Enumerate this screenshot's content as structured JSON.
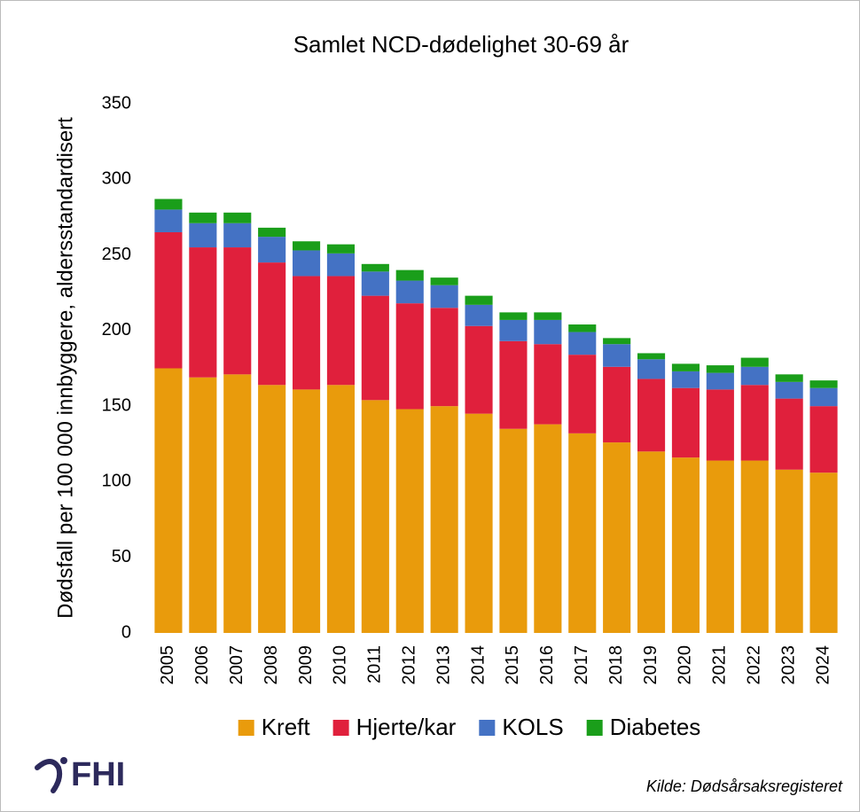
{
  "chart_data": {
    "type": "stacked_bar",
    "title": "Samlet NCD-dødelighet 30-69 år",
    "y_label": "Dødsfall per 100 000 innbyggere, aldersstandardisert",
    "categories": [
      "2005",
      "2006",
      "2007",
      "2008",
      "2009",
      "2010",
      "2011",
      "2012",
      "2013",
      "2014",
      "2015",
      "2016",
      "2017",
      "2018",
      "2019",
      "2020",
      "2021",
      "2022",
      "2023",
      "2024"
    ],
    "series": [
      {
        "name": "Kreft",
        "color": "#E99B0C",
        "values": [
          175,
          169,
          171,
          164,
          161,
          164,
          154,
          148,
          150,
          145,
          135,
          138,
          132,
          126,
          120,
          116,
          114,
          114,
          108,
          106
        ]
      },
      {
        "name": "Hjerte/kar",
        "color": "#E0203C",
        "values": [
          90,
          86,
          84,
          81,
          75,
          72,
          69,
          70,
          65,
          58,
          58,
          53,
          52,
          50,
          48,
          46,
          47,
          50,
          47,
          44
        ]
      },
      {
        "name": "KOLS",
        "color": "#4472C4",
        "values": [
          15,
          16,
          16,
          17,
          17,
          15,
          16,
          15,
          15,
          14,
          14,
          16,
          15,
          15,
          13,
          11,
          11,
          12,
          11,
          12
        ]
      },
      {
        "name": "Diabetes",
        "color": "#1A9E1A",
        "values": [
          7,
          7,
          7,
          6,
          6,
          6,
          5,
          7,
          5,
          6,
          5,
          5,
          5,
          4,
          4,
          5,
          5,
          6,
          5,
          5
        ]
      }
    ],
    "ylim": [
      0,
      350
    ],
    "yticks": [
      0,
      50,
      100,
      150,
      200,
      250,
      300,
      350
    ],
    "grid": false,
    "legend": "bottom",
    "source": "Kilde: Dødsårsaksregisteret",
    "logo": "FHI"
  }
}
